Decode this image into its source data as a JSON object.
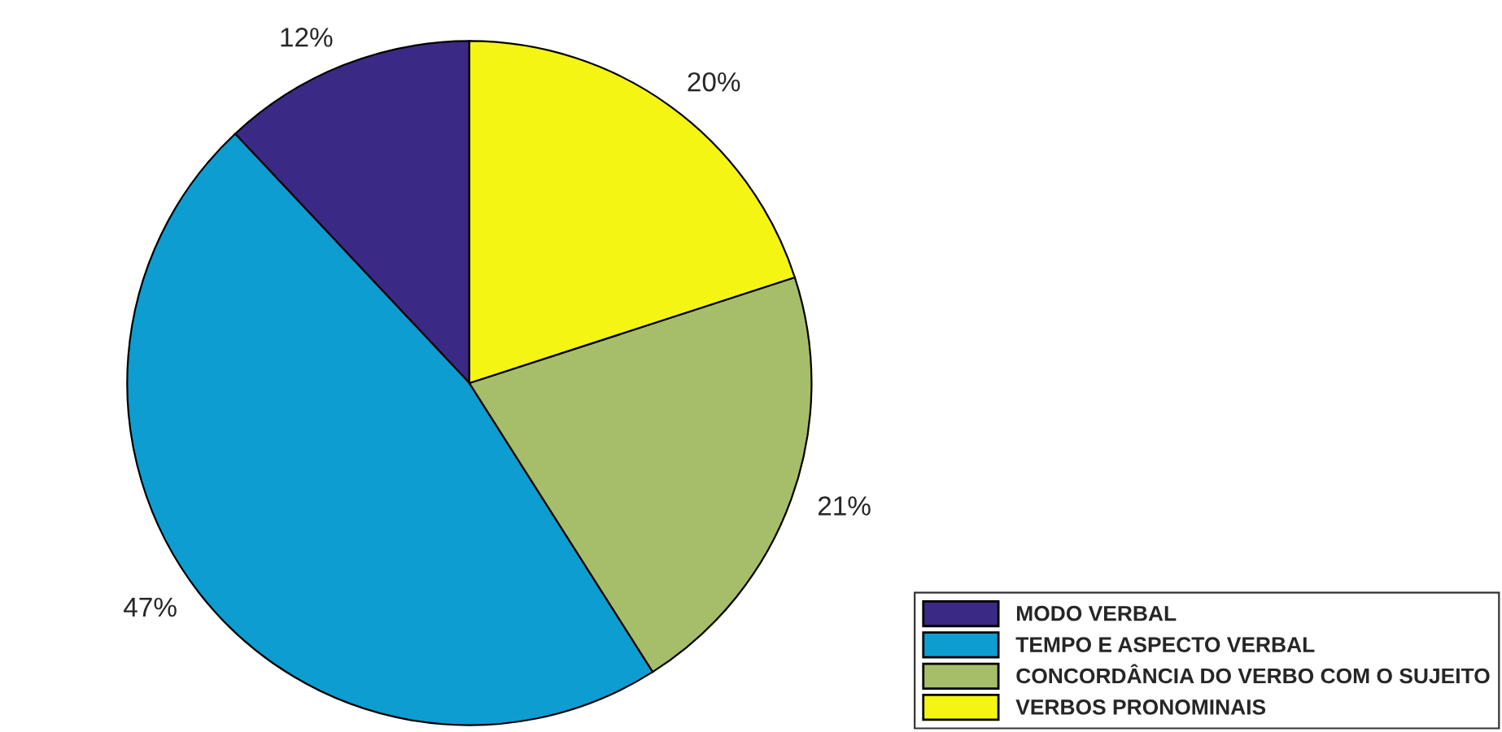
{
  "chart_data": {
    "type": "pie",
    "categories": [
      "MODO VERBAL",
      "TEMPO E ASPECTO VERBAL",
      "CONCORDÂNCIA DO VERBO COM O SUJEITO",
      "VERBOS PRONOMINAIS"
    ],
    "values": [
      12,
      47,
      21,
      20
    ],
    "value_labels": [
      "12%",
      "47%",
      "21%",
      "20%"
    ],
    "colors": [
      "#3a2a85",
      "#0d9dd1",
      "#a6be6a",
      "#f5f514"
    ],
    "legend": "bottom right"
  }
}
